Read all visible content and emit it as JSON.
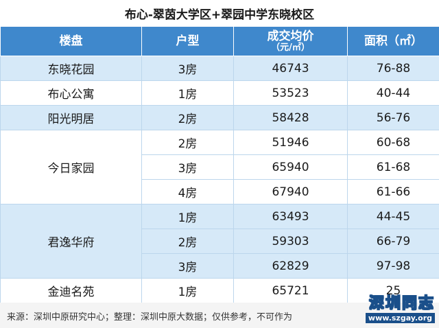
{
  "title": "布心-翠茵大学区+翠园中学东晓校区",
  "headers": {
    "estate": "楼盘",
    "type": "户型",
    "price_main": "成交均价",
    "price_unit": "（元/㎡）",
    "area": "面积（㎡）"
  },
  "rows": [
    {
      "estate": "东晓花园",
      "type": "3房",
      "price": "46743",
      "area": "76-88"
    },
    {
      "estate": "布心公寓",
      "type": "1房",
      "price": "53523",
      "area": "40-44"
    },
    {
      "estate": "阳光明居",
      "type": "2房",
      "price": "58428",
      "area": "56-76"
    },
    {
      "estate": "今日家园",
      "type": "2房",
      "price": "51946",
      "area": "60-68"
    },
    {
      "estate": "",
      "type": "3房",
      "price": "65940",
      "area": "61-68"
    },
    {
      "estate": "",
      "type": "4房",
      "price": "67940",
      "area": "61-66"
    },
    {
      "estate": "君逸华府",
      "type": "1房",
      "price": "63493",
      "area": "44-45"
    },
    {
      "estate": "",
      "type": "2房",
      "price": "59303",
      "area": "66-79"
    },
    {
      "estate": "",
      "type": "3房",
      "price": "62829",
      "area": "97-98"
    },
    {
      "estate": "金迪名苑",
      "type": "1房",
      "price": "65721",
      "area": "25"
    }
  ],
  "footer": "来源：深圳中原研究中心；整理：深圳中原大数据；仅供参考，不可作为",
  "watermark": {
    "title": "深圳同志",
    "url": "www.szgay.org"
  }
}
